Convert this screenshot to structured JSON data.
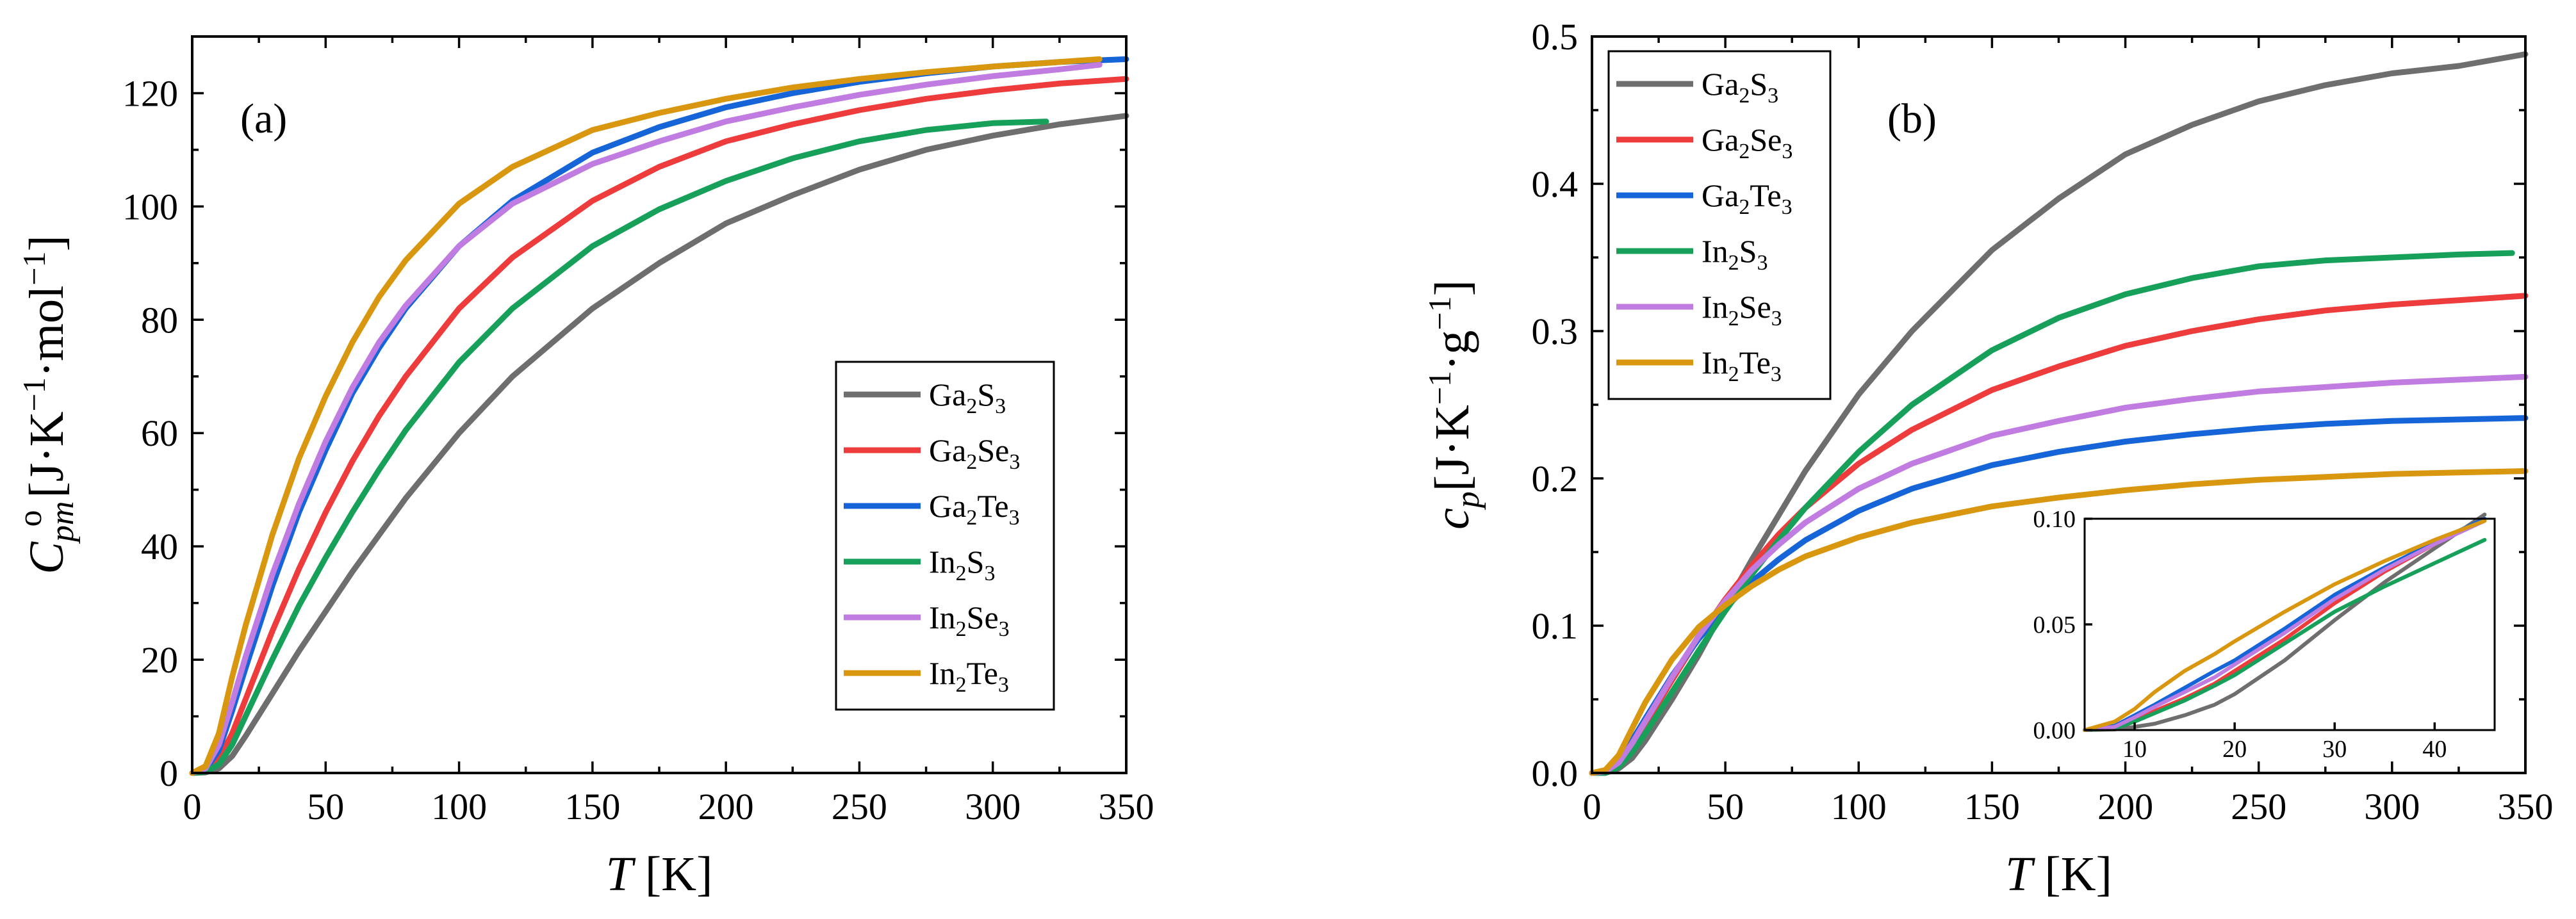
{
  "chart_data": [
    {
      "type": "line",
      "panel_label": "(a)",
      "title": "",
      "xlabel": {
        "main": "T",
        "unit": " [K]"
      },
      "ylabel": {
        "main": "C",
        "sub": "pm",
        "sup": "o",
        "unit_parts": [
          " [J·K",
          "−1",
          "·mol",
          "−1",
          "]"
        ]
      },
      "xlim": [
        0,
        350
      ],
      "ylim": [
        0,
        130
      ],
      "xticks": [
        0,
        50,
        100,
        150,
        200,
        250,
        300,
        350
      ],
      "yticks": [
        0,
        20,
        40,
        60,
        80,
        100,
        120
      ],
      "legend_position": "center-right",
      "series": [
        {
          "name": "Ga2S3",
          "label": {
            "a": "Ga",
            "s1": "2",
            "b": "S",
            "s2": "3"
          },
          "color": "#6e6e6e",
          "x": [
            0,
            5,
            10,
            15,
            20,
            30,
            40,
            50,
            60,
            70,
            80,
            100,
            120,
            150,
            175,
            200,
            225,
            250,
            275,
            300,
            325,
            350
          ],
          "y": [
            0,
            0.1,
            0.8,
            3,
            6.5,
            14,
            21.5,
            28.5,
            35.5,
            42,
            48.5,
            60,
            70,
            82,
            90,
            97,
            102,
            106.5,
            110,
            112.5,
            114.5,
            116
          ]
        },
        {
          "name": "Ga2Se3",
          "label": {
            "a": "Ga",
            "s1": "2",
            "b": "Se",
            "s2": "3"
          },
          "color": "#ee3b3b",
          "x": [
            0,
            5,
            10,
            15,
            20,
            30,
            40,
            50,
            60,
            70,
            80,
            100,
            120,
            150,
            175,
            200,
            225,
            250,
            275,
            300,
            325,
            350
          ],
          "y": [
            0,
            0.4,
            2.5,
            7,
            13,
            25,
            36,
            46,
            55,
            63,
            70,
            82,
            91,
            101,
            107,
            111.5,
            114.5,
            117,
            119,
            120.5,
            121.7,
            122.5
          ]
        },
        {
          "name": "Ga2Te3",
          "label": {
            "a": "Ga",
            "s1": "2",
            "b": "Te",
            "s2": "3"
          },
          "color": "#1565d8",
          "x": [
            0,
            5,
            10,
            15,
            20,
            30,
            40,
            50,
            60,
            70,
            80,
            100,
            120,
            150,
            175,
            200,
            225,
            250,
            275,
            300,
            325,
            350
          ],
          "y": [
            0,
            0.6,
            4,
            11,
            18.5,
            33,
            46,
            57,
            67,
            75,
            82,
            93,
            101,
            109.5,
            114,
            117.5,
            120,
            122,
            123.5,
            124.7,
            125.5,
            126
          ]
        },
        {
          "name": "In2S3",
          "label": {
            "a": "In",
            "s1": "2",
            "b": "S",
            "s2": "3"
          },
          "color": "#16a05a",
          "x": [
            0,
            5,
            10,
            15,
            20,
            30,
            40,
            50,
            60,
            70,
            80,
            100,
            120,
            150,
            175,
            200,
            225,
            250,
            275,
            300,
            320
          ],
          "y": [
            0,
            0.2,
            1.5,
            5,
            10,
            20,
            29.5,
            38,
            46,
            53.5,
            60.5,
            72.5,
            82,
            93,
            99.5,
            104.5,
            108.5,
            111.5,
            113.5,
            114.7,
            115
          ]
        },
        {
          "name": "In2Se3",
          "label": {
            "a": "In",
            "s1": "2",
            "b": "Se",
            "s2": "3"
          },
          "color": "#c07ce0",
          "x": [
            0,
            5,
            10,
            15,
            20,
            30,
            40,
            50,
            60,
            70,
            80,
            100,
            120,
            150,
            175,
            200,
            225,
            250,
            275,
            300,
            325,
            340
          ],
          "y": [
            0,
            0.8,
            5,
            12.5,
            20.5,
            35,
            47.5,
            58.5,
            68,
            76,
            82.5,
            93,
            100.5,
            107.5,
            111.5,
            115,
            117.5,
            119.7,
            121.5,
            123,
            124.2,
            125
          ]
        },
        {
          "name": "In2Te3",
          "label": {
            "a": "In",
            "s1": "2",
            "b": "Te",
            "s2": "3"
          },
          "color": "#d9970f",
          "x": [
            0,
            5,
            10,
            15,
            20,
            30,
            40,
            50,
            60,
            70,
            80,
            100,
            120,
            150,
            175,
            200,
            225,
            250,
            275,
            300,
            325,
            340
          ],
          "y": [
            0,
            1.2,
            7,
            17,
            26,
            42,
            55.5,
            66.5,
            76,
            84,
            90.5,
            100.5,
            107,
            113.5,
            116.5,
            119,
            121,
            122.5,
            123.7,
            124.7,
            125.5,
            126
          ]
        }
      ]
    },
    {
      "type": "line",
      "panel_label": "(b)",
      "title": "",
      "xlabel": {
        "main": "T",
        "unit": " [K]"
      },
      "ylabel": {
        "main": "c",
        "sub": "p",
        "unit_parts": [
          "[J·K",
          "−1",
          "·g",
          "−1",
          "]"
        ]
      },
      "xlim": [
        0,
        350
      ],
      "ylim": [
        0,
        0.5
      ],
      "xticks": [
        0,
        50,
        100,
        150,
        200,
        250,
        300,
        350
      ],
      "yticks": [
        0.0,
        0.1,
        0.2,
        0.3,
        0.4,
        0.5
      ],
      "ytick_labels": [
        "0.0",
        "0.1",
        "0.2",
        "0.3",
        "0.4",
        "0.5"
      ],
      "legend_position": "top-left",
      "series": [
        {
          "name": "Ga2S3",
          "label": {
            "a": "Ga",
            "s1": "2",
            "b": "S",
            "s2": "3"
          },
          "color": "#6e6e6e",
          "x": [
            0,
            5,
            10,
            15,
            20,
            30,
            40,
            50,
            60,
            70,
            80,
            100,
            120,
            150,
            175,
            200,
            225,
            250,
            275,
            300,
            325,
            350
          ],
          "y": [
            0,
            0,
            0.003,
            0.01,
            0.022,
            0.05,
            0.08,
            0.113,
            0.145,
            0.175,
            0.205,
            0.257,
            0.3,
            0.355,
            0.39,
            0.42,
            0.44,
            0.456,
            0.467,
            0.475,
            0.48,
            0.488
          ]
        },
        {
          "name": "Ga2Se3",
          "label": {
            "a": "Ga",
            "s1": "2",
            "b": "Se",
            "s2": "3"
          },
          "color": "#ee3b3b",
          "x": [
            0,
            5,
            10,
            15,
            20,
            30,
            40,
            50,
            60,
            70,
            80,
            100,
            120,
            150,
            175,
            200,
            225,
            250,
            275,
            300,
            325,
            350
          ],
          "y": [
            0,
            0,
            0.006,
            0.018,
            0.033,
            0.063,
            0.092,
            0.118,
            0.141,
            0.162,
            0.18,
            0.21,
            0.233,
            0.26,
            0.276,
            0.29,
            0.3,
            0.308,
            0.314,
            0.318,
            0.321,
            0.324
          ]
        },
        {
          "name": "Ga2Te3",
          "label": {
            "a": "Ga",
            "s1": "2",
            "b": "Te",
            "s2": "3"
          },
          "color": "#1565d8",
          "x": [
            0,
            5,
            10,
            15,
            20,
            30,
            40,
            50,
            60,
            70,
            80,
            100,
            120,
            150,
            175,
            200,
            225,
            250,
            275,
            300,
            325,
            350
          ],
          "y": [
            0,
            0.001,
            0.008,
            0.022,
            0.037,
            0.066,
            0.091,
            0.112,
            0.13,
            0.145,
            0.158,
            0.178,
            0.193,
            0.209,
            0.218,
            0.225,
            0.23,
            0.234,
            0.237,
            0.239,
            0.24,
            0.241
          ]
        },
        {
          "name": "In2S3",
          "label": {
            "a": "In",
            "s1": "2",
            "b": "S",
            "s2": "3"
          },
          "color": "#16a05a",
          "x": [
            0,
            5,
            10,
            15,
            20,
            30,
            40,
            50,
            60,
            70,
            80,
            100,
            120,
            150,
            175,
            200,
            225,
            250,
            275,
            300,
            325,
            345
          ],
          "y": [
            0,
            0,
            0.004,
            0.014,
            0.027,
            0.055,
            0.083,
            0.11,
            0.135,
            0.158,
            0.18,
            0.218,
            0.25,
            0.287,
            0.309,
            0.325,
            0.336,
            0.344,
            0.348,
            0.35,
            0.352,
            0.353
          ]
        },
        {
          "name": "In2Se3",
          "label": {
            "a": "In",
            "s1": "2",
            "b": "Se",
            "s2": "3"
          },
          "color": "#c07ce0",
          "x": [
            0,
            5,
            10,
            15,
            20,
            30,
            40,
            50,
            60,
            70,
            80,
            100,
            120,
            150,
            175,
            200,
            225,
            250,
            275,
            300,
            325,
            350
          ],
          "y": [
            0,
            0.001,
            0.007,
            0.02,
            0.035,
            0.065,
            0.093,
            0.117,
            0.138,
            0.155,
            0.17,
            0.193,
            0.21,
            0.229,
            0.239,
            0.248,
            0.254,
            0.259,
            0.262,
            0.265,
            0.267,
            0.269
          ]
        },
        {
          "name": "In2Te3",
          "label": {
            "a": "In",
            "s1": "2",
            "b": "Te",
            "s2": "3"
          },
          "color": "#d9970f",
          "x": [
            0,
            5,
            10,
            15,
            20,
            30,
            40,
            50,
            60,
            70,
            80,
            100,
            120,
            150,
            175,
            200,
            225,
            250,
            275,
            300,
            325,
            350
          ],
          "y": [
            0,
            0.002,
            0.012,
            0.03,
            0.048,
            0.077,
            0.099,
            0.114,
            0.127,
            0.138,
            0.147,
            0.16,
            0.17,
            0.181,
            0.187,
            0.192,
            0.196,
            0.199,
            0.201,
            0.203,
            0.204,
            0.205
          ]
        }
      ],
      "inset": {
        "xlim": [
          5,
          46
        ],
        "ylim": [
          0,
          0.1
        ],
        "xticks": [
          10,
          20,
          30,
          40
        ],
        "yticks": [
          0.0,
          0.05,
          0.1
        ],
        "ytick_labels": [
          "0.00",
          "0.05",
          "0.10"
        ],
        "series": [
          {
            "name": "Ga2S3",
            "color": "#6e6e6e",
            "x": [
              5,
              8,
              10,
              12,
              15,
              18,
              20,
              25,
              30,
              35,
              40,
              45
            ],
            "y": [
              0,
              0.0003,
              0.0015,
              0.003,
              0.007,
              0.012,
              0.017,
              0.033,
              0.052,
              0.07,
              0.086,
              0.102
            ]
          },
          {
            "name": "Ga2Se3",
            "color": "#ee3b3b",
            "x": [
              5,
              8,
              10,
              12,
              15,
              18,
              20,
              25,
              30,
              35,
              40,
              45
            ],
            "y": [
              0,
              0.001,
              0.005,
              0.009,
              0.015,
              0.022,
              0.028,
              0.043,
              0.06,
              0.075,
              0.088,
              0.1
            ]
          },
          {
            "name": "Ga2Te3",
            "color": "#1565d8",
            "x": [
              5,
              8,
              10,
              12,
              15,
              18,
              20,
              25,
              30,
              35,
              40,
              45
            ],
            "y": [
              0,
              0.002,
              0.007,
              0.012,
              0.02,
              0.028,
              0.033,
              0.048,
              0.064,
              0.077,
              0.089,
              0.1
            ]
          },
          {
            "name": "In2S3",
            "color": "#16a05a",
            "x": [
              5,
              8,
              10,
              12,
              15,
              18,
              20,
              25,
              30,
              35,
              40,
              45
            ],
            "y": [
              0,
              0.0008,
              0.004,
              0.008,
              0.014,
              0.021,
              0.026,
              0.041,
              0.056,
              0.068,
              0.079,
              0.09
            ]
          },
          {
            "name": "In2Se3",
            "color": "#c07ce0",
            "x": [
              5,
              8,
              10,
              12,
              15,
              18,
              20,
              25,
              30,
              35,
              40,
              45
            ],
            "y": [
              0,
              0.0015,
              0.006,
              0.011,
              0.018,
              0.025,
              0.031,
              0.046,
              0.062,
              0.076,
              0.088,
              0.099
            ]
          },
          {
            "name": "In2Te3",
            "color": "#d9970f",
            "x": [
              5,
              8,
              10,
              12,
              15,
              18,
              20,
              25,
              30,
              35,
              40,
              45
            ],
            "y": [
              0,
              0.004,
              0.01,
              0.018,
              0.028,
              0.036,
              0.042,
              0.056,
              0.069,
              0.08,
              0.09,
              0.099
            ]
          }
        ]
      }
    }
  ]
}
